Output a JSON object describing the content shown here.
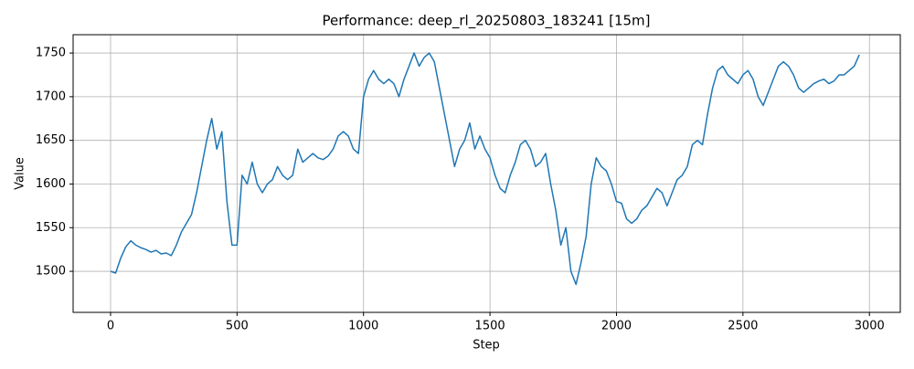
{
  "chart_data": {
    "type": "line",
    "title": "Performance: deep_rl_20250803_183241 [15m]",
    "x_label": "Step",
    "y_label": "Value",
    "color": "#1f77b4",
    "grid": true,
    "x": [
      0,
      20,
      40,
      60,
      80,
      100,
      120,
      140,
      160,
      180,
      200,
      220,
      240,
      260,
      280,
      300,
      320,
      340,
      360,
      380,
      400,
      420,
      440,
      460,
      480,
      500,
      520,
      540,
      560,
      580,
      600,
      620,
      640,
      660,
      680,
      700,
      720,
      740,
      760,
      780,
      800,
      820,
      840,
      860,
      880,
      900,
      920,
      940,
      960,
      980,
      1000,
      1020,
      1040,
      1060,
      1080,
      1100,
      1120,
      1140,
      1160,
      1180,
      1200,
      1220,
      1240,
      1260,
      1280,
      1300,
      1320,
      1340,
      1360,
      1380,
      1400,
      1420,
      1440,
      1460,
      1480,
      1500,
      1520,
      1540,
      1560,
      1580,
      1600,
      1620,
      1640,
      1660,
      1680,
      1700,
      1720,
      1740,
      1760,
      1780,
      1800,
      1820,
      1840,
      1860,
      1880,
      1900,
      1920,
      1940,
      1960,
      1980,
      2000,
      2020,
      2040,
      2060,
      2080,
      2100,
      2120,
      2140,
      2160,
      2180,
      2200,
      2220,
      2240,
      2260,
      2280,
      2300,
      2320,
      2340,
      2360,
      2380,
      2400,
      2420,
      2440,
      2460,
      2480,
      2500,
      2520,
      2540,
      2560,
      2580,
      2600,
      2620,
      2640,
      2660,
      2680,
      2700,
      2720,
      2740,
      2760,
      2780,
      2800,
      2820,
      2840,
      2860,
      2880,
      2900,
      2920,
      2940,
      2960
    ],
    "values": [
      1500,
      1498,
      1515,
      1528,
      1535,
      1530,
      1527,
      1525,
      1522,
      1524,
      1520,
      1521,
      1518,
      1530,
      1545,
      1555,
      1565,
      1590,
      1620,
      1650,
      1675,
      1640,
      1660,
      1580,
      1530,
      1530,
      1610,
      1600,
      1625,
      1600,
      1590,
      1600,
      1605,
      1620,
      1610,
      1605,
      1610,
      1640,
      1625,
      1630,
      1635,
      1630,
      1628,
      1632,
      1640,
      1655,
      1660,
      1655,
      1640,
      1635,
      1700,
      1720,
      1730,
      1720,
      1715,
      1720,
      1715,
      1700,
      1720,
      1735,
      1750,
      1735,
      1745,
      1750,
      1740,
      1710,
      1680,
      1650,
      1620,
      1640,
      1650,
      1670,
      1640,
      1655,
      1640,
      1630,
      1610,
      1595,
      1590,
      1610,
      1625,
      1645,
      1650,
      1640,
      1620,
      1625,
      1635,
      1600,
      1570,
      1530,
      1550,
      1500,
      1485,
      1510,
      1540,
      1600,
      1630,
      1620,
      1615,
      1600,
      1580,
      1578,
      1560,
      1555,
      1560,
      1570,
      1575,
      1585,
      1595,
      1590,
      1575,
      1590,
      1605,
      1610,
      1620,
      1645,
      1650,
      1645,
      1680,
      1710,
      1730,
      1735,
      1725,
      1720,
      1715,
      1725,
      1730,
      1720,
      1700,
      1690,
      1705,
      1720,
      1735,
      1740,
      1735,
      1725,
      1710,
      1705,
      1710,
      1715,
      1718,
      1720,
      1715,
      1718,
      1725,
      1725,
      1730,
      1735,
      1748
    ],
    "xlim": [
      -148,
      3122
    ],
    "ylim": [
      1453,
      1771
    ],
    "xticks": [
      0,
      500,
      1000,
      1500,
      2000,
      2500,
      3000
    ],
    "yticks": [
      1500,
      1550,
      1600,
      1650,
      1700,
      1750
    ]
  }
}
